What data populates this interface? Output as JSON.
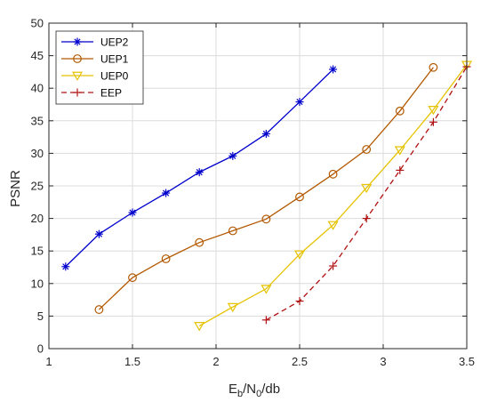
{
  "chart_data": {
    "type": "line",
    "xlabel": "E_b/N_0/db",
    "xlabel_parts": {
      "main": "E",
      "sub1": "b",
      "mid": "/N",
      "sub2": "0",
      "tail": "/db"
    },
    "ylabel": "PSNR",
    "xlim": [
      1,
      3.5
    ],
    "ylim": [
      0,
      50
    ],
    "xticks": [
      "1",
      "1.5",
      "2",
      "2.5",
      "3",
      "3.5"
    ],
    "yticks": [
      "0",
      "5",
      "10",
      "15",
      "20",
      "25",
      "30",
      "35",
      "40",
      "45",
      "50"
    ],
    "grid": true,
    "legend_position": "top-left",
    "series": [
      {
        "name": "UEP2",
        "color": "#0000cc",
        "line_style": "solid",
        "marker": "asterisk",
        "x": [
          1.1,
          1.3,
          1.5,
          1.7,
          1.9,
          2.1,
          2.3,
          2.5,
          2.7
        ],
        "y": [
          12.6,
          17.6,
          20.9,
          23.9,
          27.1,
          29.6,
          33.0,
          37.9,
          42.9
        ]
      },
      {
        "name": "UEP1",
        "color": "#b35900",
        "line_style": "solid",
        "marker": "circle",
        "x": [
          1.3,
          1.5,
          1.7,
          1.9,
          2.1,
          2.3,
          2.5,
          2.7,
          2.9,
          3.1,
          3.3
        ],
        "y": [
          6.0,
          10.9,
          13.8,
          16.3,
          18.1,
          19.9,
          23.3,
          26.8,
          30.6,
          36.5,
          43.2
        ]
      },
      {
        "name": "UEP0",
        "color": "#e6c200",
        "line_style": "solid",
        "marker": "triangle-down",
        "x": [
          1.9,
          2.1,
          2.3,
          2.5,
          2.7,
          2.9,
          3.1,
          3.3,
          3.5
        ],
        "y": [
          3.5,
          6.4,
          9.2,
          14.5,
          19.0,
          24.7,
          30.5,
          36.7,
          43.6
        ]
      },
      {
        "name": "EEP",
        "color": "#b01010",
        "line_style": "dashed",
        "marker": "plus",
        "x": [
          2.3,
          2.5,
          2.7,
          2.9,
          3.1,
          3.3,
          3.5
        ],
        "y": [
          4.4,
          7.3,
          12.7,
          20.0,
          27.4,
          34.8,
          43.3
        ]
      }
    ]
  }
}
